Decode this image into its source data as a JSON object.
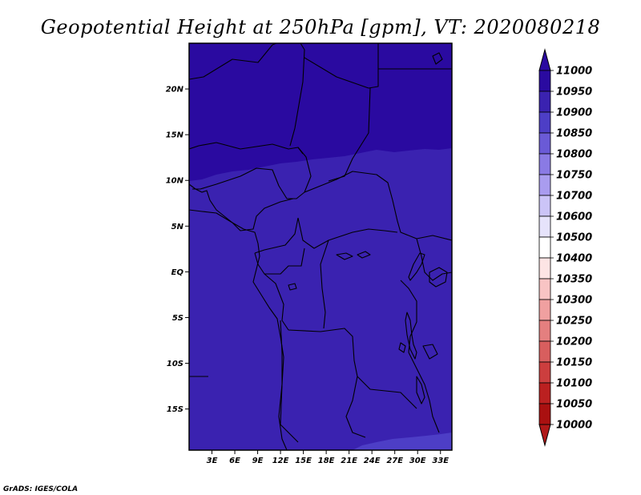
{
  "title": "Geopotential Height at 250hPa [gpm], VT: 2020080218",
  "credit": "GrADS: IGES/COLA",
  "map": {
    "lon_range": [
      0,
      34.5
    ],
    "lat_range": [
      -19.5,
      25
    ],
    "lat_ticks": [
      "20N",
      "15N",
      "10N",
      "5N",
      "EQ",
      "5S",
      "10S",
      "15S"
    ],
    "lat_tick_values": [
      20,
      15,
      10,
      5,
      0,
      -5,
      -10,
      -15
    ],
    "lon_ticks": [
      "3E",
      "6E",
      "9E",
      "12E",
      "15E",
      "18E",
      "21E",
      "24E",
      "27E",
      "30E",
      "33E"
    ],
    "lon_tick_values": [
      3,
      6,
      9,
      12,
      15,
      18,
      21,
      24,
      27,
      30,
      33
    ],
    "field_colors": {
      "band_10950_11000": "#2a0aa0",
      "band_10900_10950": "#3a22b0",
      "band_10850_10900": "#4d3ec6"
    }
  },
  "colorbar": {
    "levels": [
      "11000",
      "10950",
      "10900",
      "10850",
      "10800",
      "10750",
      "10700",
      "10600",
      "10500",
      "10400",
      "10350",
      "10300",
      "10250",
      "10200",
      "10150",
      "10100",
      "10050",
      "10000"
    ],
    "colors": [
      "#2a0aa0",
      "#3a22b0",
      "#4d3ec6",
      "#6a5ad6",
      "#8a7ae4",
      "#a99cef",
      "#cbc4f7",
      "#e6e3fb",
      "#ffffff",
      "#fde4e4",
      "#f8c4c4",
      "#f0a0a0",
      "#e47f7f",
      "#d85e5e",
      "#cc3e3e",
      "#bb2020",
      "#aa1010"
    ],
    "top_arrow_color": "#2a0aa0",
    "bottom_arrow_color": "#b01818"
  }
}
